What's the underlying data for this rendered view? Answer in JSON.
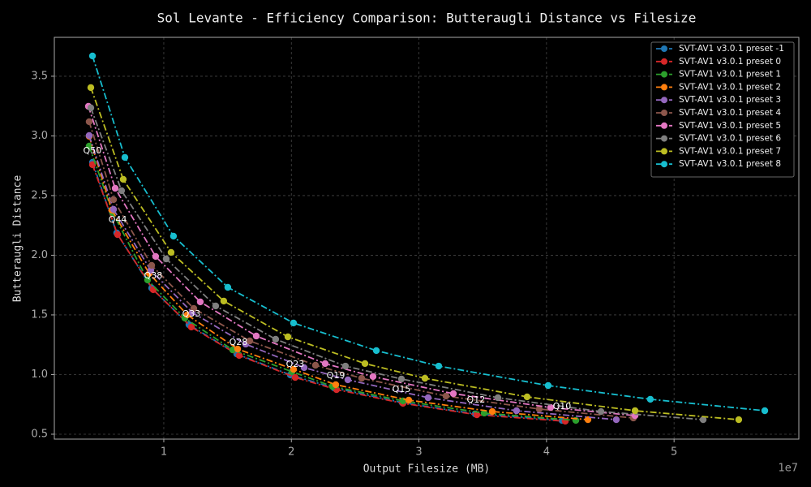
{
  "chart_data": {
    "type": "line",
    "title": "Sol Levante - Efficiency Comparison: Butteraugli Distance vs Filesize",
    "x_label": "Output Filesize (MB)",
    "y_label": "Butteraugli Distance",
    "x_offset_text": "1e7",
    "xlim": [
      1420000,
      59780000
    ],
    "ylim": [
      0.459,
      3.826
    ],
    "xticks": [
      {
        "value": 10000000,
        "label": "1"
      },
      {
        "value": 20000000,
        "label": "2"
      },
      {
        "value": 30000000,
        "label": "3"
      },
      {
        "value": 40000000,
        "label": "4"
      },
      {
        "value": 50000000,
        "label": "5"
      }
    ],
    "yticks": [
      0.5,
      {
        "value": 1,
        "label": "1.0"
      },
      1.5,
      {
        "value": 2,
        "label": "2.0"
      },
      2.5,
      {
        "value": 3,
        "label": "3.0"
      },
      3.5
    ],
    "grid": true,
    "legend": "upper right",
    "linestyle": "dashdot",
    "series": [
      {
        "name": "SVT-AV1 v3.0.1 preset -1",
        "color": "#1f77b4",
        "x": [
          4410000,
          6310000,
          9050000,
          11970000,
          15720000,
          19920000,
          23350000,
          28690000,
          34410000,
          41210000
        ],
        "values": [
          2.779,
          2.187,
          1.725,
          1.418,
          1.173,
          0.997,
          0.888,
          0.765,
          0.67,
          0.616
        ]
      },
      {
        "name": "SVT-AV1 v3.0.1 preset 0",
        "color": "#d62728",
        "x": [
          4410000,
          6380000,
          9170000,
          12160000,
          15910000,
          20300000,
          23540000,
          28750000,
          34540000,
          41470000
        ],
        "values": [
          2.759,
          2.173,
          1.711,
          1.398,
          1.16,
          0.976,
          0.874,
          0.759,
          0.663,
          0.609
        ]
      },
      {
        "name": "SVT-AV1 v3.0.1 preset 1",
        "color": "#2ca02c",
        "x": [
          4150000,
          5990000,
          8730000,
          11650000,
          15400000,
          20050000,
          23220000,
          28750000,
          35110000,
          42300000
        ],
        "values": [
          2.915,
          2.357,
          1.793,
          1.473,
          1.207,
          1.024,
          0.901,
          0.779,
          0.677,
          0.616
        ]
      },
      {
        "name": "SVT-AV1 v3.0.1 preset 2",
        "color": "#ff7f0e",
        "x": [
          4150000,
          5930000,
          8860000,
          11840000,
          15790000,
          20170000,
          23480000,
          29200000,
          35750000,
          43250000
        ],
        "values": [
          2.997,
          2.378,
          1.847,
          1.5,
          1.214,
          1.044,
          0.915,
          0.786,
          0.69,
          0.622
        ]
      },
      {
        "name": "SVT-AV1 v3.0.1 preset 3",
        "color": "#9467bd",
        "x": [
          4150000,
          6060000,
          8980000,
          12230000,
          16420000,
          21000000,
          24430000,
          30720000,
          37650000,
          45470000
        ],
        "values": [
          3.003,
          2.384,
          1.874,
          1.52,
          1.255,
          1.058,
          0.956,
          0.806,
          0.697,
          0.622
        ]
      },
      {
        "name": "SVT-AV1 v3.0.1 preset 4",
        "color": "#8c564b",
        "x": [
          4150000,
          6060000,
          9050000,
          12350000,
          16740000,
          21890000,
          25510000,
          32120000,
          39430000,
          46810000
        ],
        "values": [
          3.119,
          2.466,
          1.915,
          1.554,
          1.282,
          1.078,
          0.969,
          0.82,
          0.711,
          0.636
        ]
      },
      {
        "name": "SVT-AV1 v3.0.1 preset 5",
        "color": "#e377c2",
        "x": [
          4090000,
          6190000,
          9360000,
          12860000,
          17250000,
          22650000,
          26400000,
          32700000,
          40320000,
          46940000
        ],
        "values": [
          3.248,
          2.561,
          1.99,
          1.609,
          1.323,
          1.092,
          0.983,
          0.84,
          0.724,
          0.656
        ]
      },
      {
        "name": "SVT-AV1 v3.0.1 preset 6",
        "color": "#7f7f7f",
        "x": [
          4280000,
          6690000,
          10190000,
          14070000,
          18770000,
          24240000,
          28630000,
          36190000,
          44270000,
          52280000
        ],
        "values": [
          3.235,
          2.541,
          1.969,
          1.575,
          1.296,
          1.071,
          0.963,
          0.806,
          0.69,
          0.622
        ]
      },
      {
        "name": "SVT-AV1 v3.0.1 preset 7",
        "color": "#bcbd22",
        "x": [
          4280000,
          6820000,
          10570000,
          14700000,
          19730000,
          25770000,
          30470000,
          38480000,
          46940000,
          55070000
        ],
        "values": [
          3.405,
          2.636,
          2.024,
          1.616,
          1.316,
          1.092,
          0.969,
          0.813,
          0.697,
          0.622
        ]
      },
      {
        "name": "SVT-AV1 v3.0.1 preset 8",
        "color": "#17becf",
        "x": [
          4410000,
          6950000,
          10760000,
          15020000,
          20170000,
          26660000,
          31550000,
          40130000,
          48140000,
          57110000
        ],
        "values": [
          3.67,
          2.82,
          2.16,
          1.731,
          1.432,
          1.201,
          1.071,
          0.908,
          0.793,
          0.697
        ]
      }
    ],
    "annotations": [
      {
        "text": "Q50",
        "x": 4400000,
        "y": 2.874
      },
      {
        "text": "Q44",
        "x": 6380000,
        "y": 2.296
      },
      {
        "text": "Q38",
        "x": 9170000,
        "y": 1.827
      },
      {
        "text": "Q33",
        "x": 12160000,
        "y": 1.507
      },
      {
        "text": "Q28",
        "x": 15850000,
        "y": 1.269
      },
      {
        "text": "Q23",
        "x": 20300000,
        "y": 1.085
      },
      {
        "text": "Q19",
        "x": 23480000,
        "y": 0.99
      },
      {
        "text": "Q15",
        "x": 28630000,
        "y": 0.874
      },
      {
        "text": "Q12",
        "x": 34470000,
        "y": 0.786
      },
      {
        "text": "Q10",
        "x": 41210000,
        "y": 0.731
      }
    ]
  }
}
